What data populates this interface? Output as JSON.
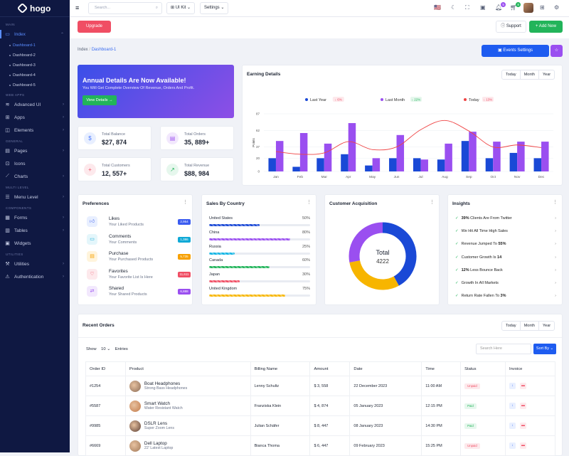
{
  "brand": "hogo",
  "sidebar": {
    "sections": [
      "MAIN",
      "WEB APPS",
      "GENERAL",
      "MULTI LEVEL",
      "COMPONENTS",
      "UTILITIES"
    ],
    "index": "Index",
    "dashboards": [
      "Dashboard-1",
      "Dashboard-2",
      "Dashboard-3",
      "Dashboard-4",
      "Dashboard-5"
    ],
    "webapps": [
      "Advanced UI",
      "Apps",
      "Elements"
    ],
    "general": [
      "Pages",
      "Icons",
      "Charts"
    ],
    "multi": [
      "Menu Level"
    ],
    "components": [
      "Forms",
      "Tables",
      "Widgets"
    ],
    "utilities": [
      "Utilities",
      "Authentication"
    ]
  },
  "header": {
    "search_placeholder": "Search...",
    "uikit": "UI Kit",
    "settings": "Settings",
    "bell_count": "5",
    "cart_count": "8"
  },
  "actions": {
    "upgrade": "Upgrade",
    "support": "Support",
    "add_new": "Add New",
    "events": "Events Settings"
  },
  "breadcrumb": {
    "root": "Index",
    "current": "Dashboard-1"
  },
  "banner": {
    "title": "Annual Details Are Now Available!",
    "subtitle": "You Will Get Complete Overview Of Revenue, Orders And Profit.",
    "button": "View Details"
  },
  "stats": [
    {
      "label": "Total Balance",
      "value": "$27, 874",
      "color": "#4f7cff",
      "bg": "#e8efff",
      "icon": "dollar-icon"
    },
    {
      "label": "Total Orders",
      "value": "35, 889+",
      "color": "#a25bf0",
      "bg": "#f2e8fd",
      "icon": "bag-icon"
    },
    {
      "label": "Total Customers",
      "value": "12, 557+",
      "color": "#f04e64",
      "bg": "#fde9ec",
      "icon": "user-plus-icon"
    },
    {
      "label": "Total Revenue",
      "value": "$88, 984",
      "color": "#22b45a",
      "bg": "#e6f7ed",
      "icon": "trend-icon"
    }
  ],
  "tabs": [
    "Today",
    "Month",
    "Year"
  ],
  "earning": {
    "title": "Earning Details"
  },
  "chart_data": {
    "type": "bar",
    "title": "Earning Details",
    "ylabel": "Points",
    "ylim": [
      0,
      87
    ],
    "yticks": [
      0,
      20,
      37,
      62,
      87
    ],
    "categories": [
      "Jan",
      "Feb",
      "Mar",
      "Apr",
      "May",
      "Jun",
      "Jul",
      "Aug",
      "Sep",
      "Oct",
      "Nov",
      "Dec"
    ],
    "legend": [
      {
        "name": "Last Year",
        "badge": "6%",
        "color": "#1a49d6",
        "badge_bg": "#fde9ec",
        "badge_color": "#f04e64"
      },
      {
        "name": "Last Month",
        "badge": "22%",
        "color": "#9a4ff0",
        "badge_bg": "#e6f7ed",
        "badge_color": "#22b45a"
      },
      {
        "name": "Today",
        "badge": "13%",
        "color": "#ef4444",
        "badge_bg": "#fde9ec",
        "badge_color": "#f04e64"
      }
    ],
    "series": [
      {
        "name": "Last Year",
        "type": "bar",
        "color": "#1a49d6",
        "values": [
          20,
          7,
          20,
          26,
          9,
          20,
          20,
          18,
          46,
          20,
          28,
          20
        ]
      },
      {
        "name": "Last Month",
        "type": "bar",
        "color": "#9a4ff0",
        "values": [
          46,
          58,
          42,
          73,
          20,
          55,
          18,
          42,
          60,
          45,
          45,
          45
        ]
      },
      {
        "name": "Today",
        "type": "line",
        "color": "#ef4444",
        "values": [
          30,
          26,
          28,
          45,
          33,
          37,
          63,
          77,
          61,
          37,
          40,
          36
        ]
      }
    ]
  },
  "preferences": {
    "title": "Preferences",
    "items": [
      {
        "title": "Likes",
        "sub": "Your Liked Products",
        "count": "2,954",
        "color": "#3b5cf0",
        "bg": "#e8efff",
        "icon": "thumbs-up-icon"
      },
      {
        "title": "Comments",
        "sub": "Your Comments",
        "count": "1,386",
        "color": "#10a9d6",
        "bg": "#e4f6fb",
        "icon": "comment-icon"
      },
      {
        "title": "Purchase",
        "sub": "Your Purchased Products",
        "count": "5,735",
        "color": "#f7a000",
        "bg": "#fff4dc",
        "icon": "cart-icon"
      },
      {
        "title": "Favorites",
        "sub": "Your Favorite List Is Here",
        "count": "11,611",
        "color": "#f04e64",
        "bg": "#fde9ec",
        "icon": "heart-icon"
      },
      {
        "title": "Shared",
        "sub": "Your Shared Products",
        "count": "6,888",
        "color": "#9a4ff0",
        "bg": "#f2e8fd",
        "icon": "share-icon"
      }
    ]
  },
  "countries": {
    "title": "Sales By Country",
    "items": [
      {
        "name": "United States",
        "pct": "50%",
        "value": 50,
        "color": "#1a49d6"
      },
      {
        "name": "China",
        "pct": "80%",
        "value": 80,
        "color": "#9a4ff0"
      },
      {
        "name": "Russia",
        "pct": "25%",
        "value": 25,
        "color": "#10b4e4"
      },
      {
        "name": "Canada",
        "pct": "60%",
        "value": 60,
        "color": "#22b45a"
      },
      {
        "name": "Japan",
        "pct": "30%",
        "value": 30,
        "color": "#f04e64"
      },
      {
        "name": "United Kingdom",
        "pct": "75%",
        "value": 75,
        "color": "#f7b500"
      }
    ]
  },
  "acquisition": {
    "title": "Customer Acquisition",
    "total_label": "Total",
    "total_value": "4222",
    "segments": [
      {
        "value": 42,
        "color": "#1a49d6"
      },
      {
        "value": 30,
        "color": "#f7b500"
      },
      {
        "value": 28,
        "color": "#9a4ff0"
      }
    ]
  },
  "insights": {
    "title": "Insights",
    "items": [
      {
        "bold": "39%",
        "rest": " Clients Are From Twitter"
      },
      {
        "bold": "",
        "rest": "We Hit All Time High Sales"
      },
      {
        "bold": "",
        "rest": "Revenue Jumped To ",
        "tail": "55%"
      },
      {
        "bold": "",
        "rest": "Customer Growth Is ",
        "tail": "14"
      },
      {
        "bold": "12%",
        "rest": " Less Bounce Back"
      },
      {
        "bold": "",
        "rest": "Growth In All Markets"
      },
      {
        "bold": "",
        "rest": "Return Rate Fallen To ",
        "tail": "3%"
      }
    ]
  },
  "orders": {
    "title": "Recent Orders",
    "show": "Show",
    "show_value": "10",
    "entries": "Entries",
    "search_placeholder": "Search Here",
    "sort": "Sort By",
    "columns": [
      "Order ID",
      "Product",
      "Billing Name",
      "Amount",
      "Date",
      "Time",
      "Status",
      "Invoice"
    ],
    "rows": [
      {
        "id": "#1254",
        "product": "Boat Headphones",
        "desc": "Strong Bass Headphones",
        "name": "Lenny Schultz",
        "amount": "$ 3, 558",
        "date": "22 December 2023",
        "time": "11:00 AM",
        "status": "Unpaid",
        "scolor": "#f04e64",
        "sbg": "#fde9ec",
        "thumb": "#8a6b56"
      },
      {
        "id": "#5587",
        "product": "Smart Watch",
        "desc": "Water Resistant Watch",
        "name": "Franziska Klein",
        "amount": "$ 4, 874",
        "date": "05 January 2023",
        "time": "12:15 PM",
        "status": "Paid",
        "scolor": "#22b45a",
        "sbg": "#e6f7ed",
        "thumb": "#c27a4a"
      },
      {
        "id": "#9985",
        "product": "DSLR Lens",
        "desc": "Super Zoom Lens",
        "name": "Julian Schäfer",
        "amount": "$ 8, 447",
        "date": "08 January 2023",
        "time": "14:30 PM",
        "status": "Paid",
        "scolor": "#22b45a",
        "sbg": "#e6f7ed",
        "thumb": "#5a3e34"
      },
      {
        "id": "#6669",
        "product": "Dell Laptop",
        "desc": "22' Latest Laptop",
        "name": "Bianca Thoma",
        "amount": "$ 6, 447",
        "date": "09 February 2023",
        "time": "15:25 PM",
        "status": "Unpaid",
        "scolor": "#f04e64",
        "sbg": "#fde9ec",
        "thumb": "#a07858"
      }
    ]
  }
}
